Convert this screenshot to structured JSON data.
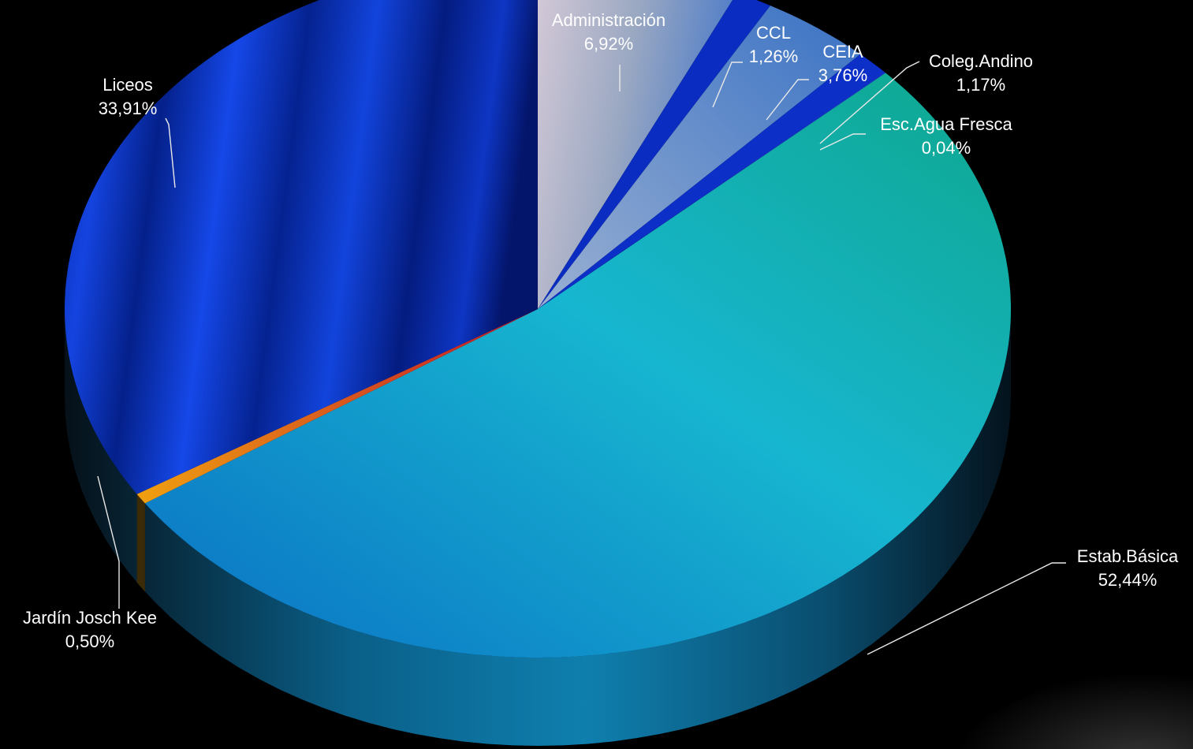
{
  "chart_data": {
    "type": "pie",
    "title": "",
    "style": "3d-exploded-none",
    "slices": [
      {
        "label": "Administración",
        "value_label": "6,92%",
        "value": 6.92,
        "color": "#b7bfd4"
      },
      {
        "label": "CCL",
        "value_label": "1,26%",
        "value": 1.26,
        "color": "#0a2cc0"
      },
      {
        "label": "CEIA",
        "value_label": "3,76%",
        "value": 3.76,
        "color": "#6f94c8"
      },
      {
        "label": "Coleg.Andino",
        "value_label": "1,17%",
        "value": 1.17,
        "color": "#0c2fc8"
      },
      {
        "label": "Esc.Agua Fresca",
        "value_label": "0,04%",
        "value": 0.04,
        "color": "#1a3cd0"
      },
      {
        "label": "Estab.Básica",
        "value_label": "52,44%",
        "value": 52.44,
        "color": "#16a8c8"
      },
      {
        "label": "Jardín Josch Kee",
        "value_label": "0,50%",
        "value": 0.5,
        "color": "#e8900a"
      },
      {
        "label": "Liceos",
        "value_label": "33,91%",
        "value": 33.91,
        "color": "#0a2cc8"
      }
    ]
  }
}
